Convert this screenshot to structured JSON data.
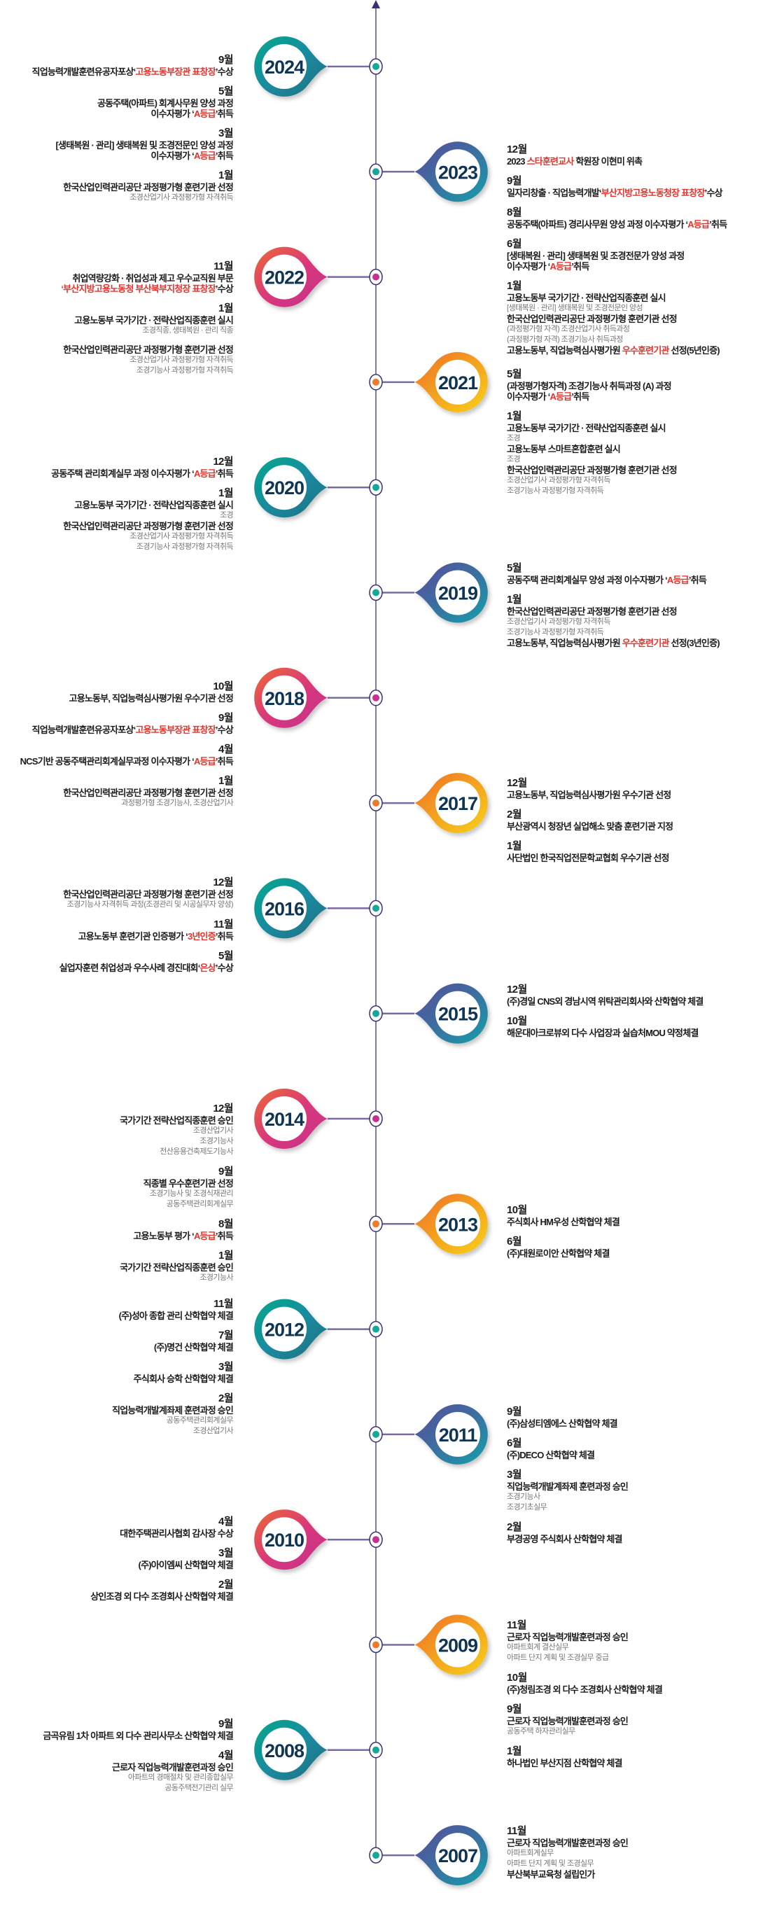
{
  "palette": {
    "teal": [
      "#00a88a",
      "#1a8aa0",
      "#1f6f7e"
    ],
    "purple": [
      "#5b4a9b",
      "#3b6fa0",
      "#14a0aa"
    ],
    "magenta": [
      "#ec6a33",
      "#d9387a",
      "#c42f90"
    ],
    "yellow": [
      "#f06c2a",
      "#f3a21f",
      "#f8d11a"
    ],
    "dot": {
      "teal": "#14a89a",
      "purple": "#14a89a",
      "magenta": "#c8308f",
      "yellow": "#f07a2a"
    },
    "highlight": "#e8322b",
    "year_text": "#0f3556",
    "spine": "#5a5080"
  },
  "timeline": [
    {
      "year": "2024",
      "color": "teal",
      "entries": [
        {
          "month": "9월",
          "lines": [
            {
              "parts": [
                "직업능력개발훈련유공자포상‘",
                {
                  "hl": "고용노동부장관 표창장"
                },
                "’수상"
              ]
            }
          ]
        },
        {
          "month": "5월",
          "lines": [
            {
              "parts": [
                "공동주택(아파트) 회계사무원 양성 과정"
              ]
            },
            {
              "parts": [
                "이수자평가 ‘",
                {
                  "hl": "A등급"
                },
                "’취득"
              ]
            }
          ]
        },
        {
          "month": "3월",
          "lines": [
            {
              "parts": [
                "[생태복원 · 관리] 생태복원 및 조경전문인 양성 과정"
              ]
            },
            {
              "parts": [
                "이수자평가 ‘",
                {
                  "hl": "A등급"
                },
                "’취득"
              ]
            }
          ]
        },
        {
          "month": "1월",
          "lines": [
            {
              "parts": [
                "한국산업인력관리공단 과정평가형 훈련기관 선정"
              ]
            },
            {
              "sub": true,
              "parts": [
                "조경산업기사 과정평가형 자격취득"
              ]
            }
          ]
        }
      ]
    },
    {
      "year": "2023",
      "color": "purple",
      "entries": [
        {
          "month": "12월",
          "lines": [
            {
              "parts": [
                "2023 ",
                {
                  "hl": "스타훈련교사"
                },
                " 학원장 이현미 위촉"
              ]
            }
          ]
        },
        {
          "month": "9월",
          "lines": [
            {
              "parts": [
                "일자리창출 · 직업능력개발‘",
                {
                  "hl": "부산지방고용노동청장 표창장"
                },
                "’수상"
              ]
            }
          ]
        },
        {
          "month": "8월",
          "lines": [
            {
              "parts": [
                "공동주택(아파트) 경리사무원 양성 과정 이수자평가 ‘",
                {
                  "hl": "A등급"
                },
                "’취득"
              ]
            }
          ]
        },
        {
          "month": "6월",
          "lines": [
            {
              "parts": [
                "[생태복원 · 관리] 생태복원 및 조경전문가 양성 과정"
              ]
            },
            {
              "parts": [
                "이수자평가 ‘",
                {
                  "hl": "A등급"
                },
                "’취득"
              ]
            }
          ]
        },
        {
          "month": "1월",
          "lines": [
            {
              "parts": [
                "고용노동부 국가기간 · 전략산업직종훈련 실시"
              ]
            },
            {
              "sub": true,
              "parts": [
                "[생태복원 · 관리] 생태복원 및 조경전문인 양성"
              ]
            },
            {
              "parts": [
                "한국산업인력관리공단 과정평가형 훈련기관 선정"
              ]
            },
            {
              "sub": true,
              "parts": [
                "(과정평가형 자격) 조경산업기사 취득과정"
              ]
            },
            {
              "sub": true,
              "parts": [
                "(과정평가형 자격) 조경기능사 취득과정"
              ]
            },
            {
              "parts": [
                "고용노동부, 직업능력심사평가원 ",
                {
                  "hl": "우수훈련기관"
                },
                " 선정(5년인증)"
              ]
            }
          ]
        }
      ]
    },
    {
      "year": "2022",
      "color": "magenta",
      "entries": [
        {
          "month": "11월",
          "lines": [
            {
              "parts": [
                "취업역량강화 · 취업성과 제고 우수교직원 부문"
              ]
            },
            {
              "parts": [
                {
                  "hl": "‘부산지방고용노동청 부산북부지청장 표창장"
                },
                "’수상"
              ]
            }
          ]
        },
        {
          "month": "1월",
          "lines": [
            {
              "parts": [
                "고용노동부 국가기간 · 전략산업직종훈련 실시"
              ]
            },
            {
              "sub": true,
              "parts": [
                "조경직종, 생태복원 · 관리 직종"
              ]
            }
          ]
        },
        {
          "month": "",
          "lines": [
            {
              "parts": [
                "한국산업인력관리공단 과정평가형 훈련기관 선정"
              ]
            },
            {
              "sub": true,
              "parts": [
                "조경산업기사 과정평가형 자격취득"
              ]
            },
            {
              "sub": true,
              "parts": [
                "조경기능사 과정평가형 자격취득"
              ]
            }
          ]
        }
      ]
    },
    {
      "year": "2021",
      "color": "yellow",
      "entries": [
        {
          "month": "5월",
          "lines": [
            {
              "parts": [
                "(과정평가형자격) 조경기능사 취득과정 (A) 과정"
              ]
            },
            {
              "parts": [
                "이수자평가 ‘",
                {
                  "hl": "A등급"
                },
                "’취득"
              ]
            }
          ]
        },
        {
          "month": "1월",
          "lines": [
            {
              "parts": [
                "고용노동부 국가기간 · 전략산업직종훈련 실시"
              ]
            },
            {
              "sub": true,
              "parts": [
                "조경"
              ]
            },
            {
              "parts": [
                "고용노동부 스마트혼합훈련 실시"
              ]
            },
            {
              "sub": true,
              "parts": [
                "조경"
              ]
            },
            {
              "parts": [
                "한국산업인력관리공단 과정평가형 훈련기관 선정"
              ]
            },
            {
              "sub": true,
              "parts": [
                "조경산업기사 과정평가형 자격취득"
              ]
            },
            {
              "sub": true,
              "parts": [
                "조경기능사 과정평가형 자격취득"
              ]
            }
          ]
        }
      ]
    },
    {
      "year": "2020",
      "color": "teal",
      "entries": [
        {
          "month": "12월",
          "lines": [
            {
              "parts": [
                "공동주택 관리회계실무 과정 이수자평가 ‘",
                {
                  "hl": "A등급"
                },
                "’취득"
              ]
            }
          ]
        },
        {
          "month": "1월",
          "lines": [
            {
              "parts": [
                "고용노동부 국가기간 · 전략산업직종훈련 실시"
              ]
            },
            {
              "sub": true,
              "parts": [
                "조경"
              ]
            },
            {
              "parts": [
                "한국산업인력관리공단 과정평가형 훈련기관 선정"
              ]
            },
            {
              "sub": true,
              "parts": [
                "조경산업기사 과정평가형 자격취득"
              ]
            },
            {
              "sub": true,
              "parts": [
                "조경기능사 과정평가형 자격취득"
              ]
            }
          ]
        }
      ]
    },
    {
      "year": "2019",
      "color": "purple",
      "entries": [
        {
          "month": "5월",
          "lines": [
            {
              "parts": [
                "공동주택 관리회계실무 양성 과정 이수자평가 ‘",
                {
                  "hl": "A등급"
                },
                "’취득"
              ]
            }
          ]
        },
        {
          "month": "1월",
          "lines": [
            {
              "parts": [
                "한국산업인력관리공단 과정평가형 훈련기관 선정"
              ]
            },
            {
              "sub": true,
              "parts": [
                "조경산업기사 과정평가형 자격취득"
              ]
            },
            {
              "sub": true,
              "parts": [
                "조경기능사 과정평가형 자격취득"
              ]
            },
            {
              "parts": [
                "고용노동부, 직업능력심사평가원 ",
                {
                  "hl": "우수훈련기관"
                },
                " 선정(3년인증)"
              ]
            }
          ]
        }
      ]
    },
    {
      "year": "2018",
      "color": "magenta",
      "entries": [
        {
          "month": "10월",
          "lines": [
            {
              "parts": [
                "고용노동부, 직업능력심사평가원 우수기관 선정"
              ]
            }
          ]
        },
        {
          "month": "9월",
          "lines": [
            {
              "parts": [
                "직업능력개발훈련유공자포상‘",
                {
                  "hl": "고용노동부장관 표창장"
                },
                "’수상"
              ]
            }
          ]
        },
        {
          "month": "4월",
          "lines": [
            {
              "parts": [
                "NCS기반 공동주택관리회계실무과정 이수자평가 ‘",
                {
                  "hl": "A등급"
                },
                "’취득"
              ]
            }
          ]
        },
        {
          "month": "1월",
          "lines": [
            {
              "parts": [
                "한국산업인력관리공단 과정평가형 훈련기관 선정"
              ]
            },
            {
              "sub": true,
              "parts": [
                "과정평가형 조경기능사, 조경산업기사"
              ]
            }
          ]
        }
      ]
    },
    {
      "year": "2017",
      "color": "yellow",
      "entries": [
        {
          "month": "12월",
          "lines": [
            {
              "parts": [
                "고용노동부, 직업능력심사평가원 우수기관 선정"
              ]
            }
          ]
        },
        {
          "month": "2월",
          "lines": [
            {
              "parts": [
                "부산광역시 청장년 실업해소 맞춤 훈련기관 지정"
              ]
            }
          ]
        },
        {
          "month": "1월",
          "lines": [
            {
              "parts": [
                "사단법인 한국직업전문학교협회 우수기관 선정"
              ]
            }
          ]
        }
      ]
    },
    {
      "year": "2016",
      "color": "teal",
      "entries": [
        {
          "month": "12월",
          "lines": [
            {
              "parts": [
                "한국산업인력관리공단 과정평가형 훈련기관 선정"
              ]
            },
            {
              "sub": true,
              "parts": [
                "조경기능사 자격취득 과정(조경관리 및 시공실무자 양성)"
              ]
            }
          ]
        },
        {
          "month": "11월",
          "lines": [
            {
              "parts": [
                "고용노동부 훈련기관 인증평가 ‘",
                {
                  "hl": "3년인증"
                },
                "’취득"
              ]
            }
          ]
        },
        {
          "month": "5월",
          "lines": [
            {
              "parts": [
                "실업자훈련 취업성과 우수사례 경진대회‘",
                {
                  "hl": "은상"
                },
                "’수상"
              ]
            }
          ]
        }
      ]
    },
    {
      "year": "2015",
      "color": "purple",
      "entries": [
        {
          "month": "12월",
          "lines": [
            {
              "parts": [
                "(주)경일 CNS외 경남시역 위탁관리회사와 산학협약 체결"
              ]
            }
          ]
        },
        {
          "month": "10월",
          "lines": [
            {
              "parts": [
                "해운대아크로뷰외 다수 사업장과 실습처MOU 약정체결"
              ]
            }
          ]
        }
      ]
    },
    {
      "year": "2014",
      "color": "magenta",
      "entries": [
        {
          "month": "12월",
          "lines": [
            {
              "parts": [
                "국가기간 전략산업직종훈련 승인"
              ]
            },
            {
              "sub": true,
              "parts": [
                "조경산업기사"
              ]
            },
            {
              "sub": true,
              "parts": [
                "조경기능사"
              ]
            },
            {
              "sub": true,
              "parts": [
                "전산응용건축제도기능사"
              ]
            }
          ]
        },
        {
          "month": "9월",
          "lines": [
            {
              "parts": [
                "직종별 우수훈련기관 선정"
              ]
            },
            {
              "sub": true,
              "parts": [
                "조경기능사 및 조경식재관리"
              ]
            },
            {
              "sub": true,
              "parts": [
                "공동주택관리회계실무"
              ]
            }
          ]
        },
        {
          "month": "8월",
          "lines": [
            {
              "parts": [
                "고용노동부 평가 ‘",
                {
                  "hl": "A등급"
                },
                "’취득"
              ]
            }
          ]
        },
        {
          "month": "1월",
          "lines": [
            {
              "parts": [
                "국가기간 전략산업직종훈련 승인"
              ]
            },
            {
              "sub": true,
              "parts": [
                "조경기능사"
              ]
            }
          ]
        }
      ]
    },
    {
      "year": "2013",
      "color": "yellow",
      "entries": [
        {
          "month": "10월",
          "lines": [
            {
              "parts": [
                "주식회사 HM우성 산학협약 체결"
              ]
            }
          ]
        },
        {
          "month": "6월",
          "lines": [
            {
              "parts": [
                "(주)대원로이안 산학협약 체결"
              ]
            }
          ]
        }
      ]
    },
    {
      "year": "2012",
      "color": "teal",
      "entries": [
        {
          "month": "11월",
          "lines": [
            {
              "parts": [
                "(주)성아 종합 관리 산학협약 체결"
              ]
            }
          ]
        },
        {
          "month": "7월",
          "lines": [
            {
              "parts": [
                "(주)명건 산학협약 체결"
              ]
            }
          ]
        },
        {
          "month": "3월",
          "lines": [
            {
              "parts": [
                "주식회사 승학 산학협약 체결"
              ]
            }
          ]
        },
        {
          "month": "2월",
          "lines": [
            {
              "parts": [
                "직업능력개발계좌제 훈련과정 승인"
              ]
            },
            {
              "sub": true,
              "parts": [
                "공동주택관리회계실무"
              ]
            },
            {
              "sub": true,
              "parts": [
                "조경산업기사"
              ]
            }
          ]
        }
      ]
    },
    {
      "year": "2011",
      "color": "purple",
      "entries": [
        {
          "month": "9월",
          "lines": [
            {
              "parts": [
                "(주)삼성티엠에스 산학협약 체결"
              ]
            }
          ]
        },
        {
          "month": "6월",
          "lines": [
            {
              "parts": [
                "(주)DECO 산학협약 체결"
              ]
            }
          ]
        },
        {
          "month": "3월",
          "lines": [
            {
              "parts": [
                "직업능력개발계좌제 훈련과정 승인"
              ]
            },
            {
              "sub": true,
              "parts": [
                "조경기능사"
              ]
            },
            {
              "sub": true,
              "parts": [
                "조경기초실무"
              ]
            }
          ]
        },
        {
          "month": "2월",
          "lines": [
            {
              "parts": [
                "부경공영 주식회사 산학협약 체결"
              ]
            }
          ]
        }
      ]
    },
    {
      "year": "2010",
      "color": "magenta",
      "entries": [
        {
          "month": "4월",
          "lines": [
            {
              "parts": [
                "대한주택관리사협회 감사장 수상"
              ]
            }
          ]
        },
        {
          "month": "3월",
          "lines": [
            {
              "parts": [
                "(주)아이엠씨 산학협약 체결"
              ]
            }
          ]
        },
        {
          "month": "2월",
          "lines": [
            {
              "parts": [
                "상인조경 외 다수 조경회사 산학협약 체결"
              ]
            }
          ]
        }
      ]
    },
    {
      "year": "2009",
      "color": "yellow",
      "entries": [
        {
          "month": "11월",
          "lines": [
            {
              "parts": [
                "근로자 직업능력개발훈련과정 승인"
              ]
            },
            {
              "sub": true,
              "parts": [
                "아파트회계 결산실무"
              ]
            },
            {
              "sub": true,
              "parts": [
                "아파트 단지 계획 및 조경실무 중급"
              ]
            }
          ]
        },
        {
          "month": "10월",
          "lines": [
            {
              "parts": [
                "(주)청림조경 외 다수 조경회사 산학협약 체결"
              ]
            }
          ]
        },
        {
          "month": "9월",
          "lines": [
            {
              "parts": [
                "근로자 직업능력개발훈련과정 승인"
              ]
            },
            {
              "sub": true,
              "parts": [
                "공동주택 하자관리실무"
              ]
            }
          ]
        },
        {
          "month": "1월",
          "lines": [
            {
              "parts": [
                "하나법인 부산지점 산학협약 체결"
              ]
            }
          ]
        }
      ]
    },
    {
      "year": "2008",
      "color": "teal",
      "entries": [
        {
          "month": "9월",
          "lines": [
            {
              "parts": [
                "금곡유림 1차 아파트 외 다수 관리사무소 산학협약 체결"
              ]
            }
          ]
        },
        {
          "month": "4월",
          "lines": [
            {
              "parts": [
                "근로자 직업능력개발훈련과정 승인"
              ]
            },
            {
              "sub": true,
              "parts": [
                "아파트의 경매절차 및 관리종합실무"
              ]
            },
            {
              "sub": true,
              "parts": [
                "공동주택전기관리 실무"
              ]
            }
          ]
        }
      ]
    },
    {
      "year": "2007",
      "color": "purple",
      "entries": [
        {
          "month": "11월",
          "lines": [
            {
              "parts": [
                "근로자 직업능력개발훈련과정 승인"
              ]
            },
            {
              "sub": true,
              "parts": [
                "아파트회계실무"
              ]
            },
            {
              "sub": true,
              "parts": [
                "아파트 단지 계획 및 조경실무"
              ]
            },
            {
              "parts": [
                "부산북부교육청 설립인가"
              ]
            }
          ]
        }
      ]
    }
  ]
}
